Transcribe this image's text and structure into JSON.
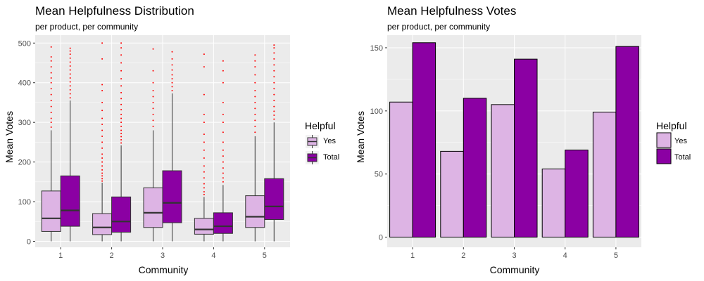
{
  "colors": {
    "yes": "#DDB4E4",
    "total": "#8B00A3",
    "outlier": "#FF0000",
    "panel": "#EBEBEB",
    "grid": "#FFFFFF"
  },
  "chart_data": [
    {
      "type": "boxplot",
      "title": "Mean Helpfulness Distribution",
      "subtitle": "per product, per community",
      "xlabel": "Community",
      "ylabel": "Mean Votes",
      "categories": [
        "1",
        "2",
        "3",
        "4",
        "5"
      ],
      "ylim": [
        -15,
        520
      ],
      "yticks": [
        0,
        100,
        200,
        300,
        400,
        500
      ],
      "grid": true,
      "legend": {
        "title": "Helpful",
        "position": "right",
        "entries": [
          "Yes",
          "Total"
        ]
      },
      "series": [
        {
          "name": "Yes",
          "boxes": [
            {
              "min": 0,
              "q1": 25,
              "median": 58,
              "q3": 127,
              "max": 280,
              "outliers": [
                288,
                300,
                310,
                325,
                340,
                355,
                370,
                385,
                400,
                412,
                425,
                440,
                455,
                465,
                490
              ]
            },
            {
              "min": 0,
              "q1": 17,
              "median": 35,
              "q3": 70,
              "max": 148,
              "outliers": [
                152,
                158,
                165,
                172,
                180,
                190,
                200,
                210,
                220,
                235,
                250,
                265,
                280,
                295,
                310,
                330,
                350,
                380,
                395,
                460,
                500
              ]
            },
            {
              "min": 0,
              "q1": 35,
              "median": 72,
              "q3": 135,
              "max": 280,
              "outliers": [
                290,
                305,
                320,
                335,
                350,
                365,
                380,
                400,
                430,
                485
              ]
            },
            {
              "min": 0,
              "q1": 18,
              "median": 30,
              "q3": 58,
              "max": 112,
              "outliers": [
                118,
                125,
                135,
                145,
                160,
                175,
                190,
                210,
                230,
                250,
                270,
                300,
                320,
                370,
                440,
                472
              ]
            },
            {
              "min": 0,
              "q1": 35,
              "median": 62,
              "q3": 115,
              "max": 265,
              "outliers": [
                275,
                290,
                305,
                320,
                335,
                350,
                365,
                380,
                400,
                420,
                440,
                455,
                470
              ]
            }
          ]
        },
        {
          "name": "Total",
          "boxes": [
            {
              "min": 0,
              "q1": 38,
              "median": 78,
              "q3": 165,
              "max": 355,
              "outliers": [
                362,
                372,
                382,
                392,
                402,
                412,
                422,
                432,
                442,
                452,
                462,
                472,
                480,
                487
              ]
            },
            {
              "min": 0,
              "q1": 23,
              "median": 50,
              "q3": 112,
              "max": 242,
              "outliers": [
                248,
                256,
                264,
                272,
                280,
                290,
                300,
                310,
                320,
                332,
                345,
                360,
                375,
                392,
                410,
                430,
                450,
                470,
                488,
                500
              ]
            },
            {
              "min": 0,
              "q1": 47,
              "median": 97,
              "q3": 178,
              "max": 373,
              "outliers": [
                380,
                390,
                400,
                410,
                420,
                432,
                445,
                460,
                478
              ]
            },
            {
              "min": 0,
              "q1": 20,
              "median": 38,
              "q3": 72,
              "max": 142,
              "outliers": [
                150,
                160,
                172,
                185,
                200,
                215,
                230,
                250,
                275,
                300,
                320,
                350,
                400,
                430,
                455
              ]
            },
            {
              "min": 0,
              "q1": 55,
              "median": 88,
              "q3": 158,
              "max": 300,
              "outliers": [
                308,
                318,
                328,
                340,
                355,
                370,
                385,
                400,
                415,
                430,
                445,
                460,
                475,
                488,
                495
              ]
            }
          ]
        }
      ]
    },
    {
      "type": "bar",
      "title": "Mean Helpfulness Votes",
      "subtitle": "per product, per community",
      "xlabel": "Community",
      "ylabel": "Mean Votes",
      "categories": [
        "1",
        "2",
        "3",
        "4",
        "5"
      ],
      "ylim": [
        -8,
        160
      ],
      "yticks": [
        0,
        50,
        100,
        150
      ],
      "grid": true,
      "legend": {
        "title": "Helpful",
        "position": "right",
        "entries": [
          "Yes",
          "Total"
        ]
      },
      "series": [
        {
          "name": "Yes",
          "values": [
            107,
            68,
            105,
            54,
            99
          ]
        },
        {
          "name": "Total",
          "values": [
            154,
            110,
            141,
            69,
            151
          ]
        }
      ]
    }
  ]
}
